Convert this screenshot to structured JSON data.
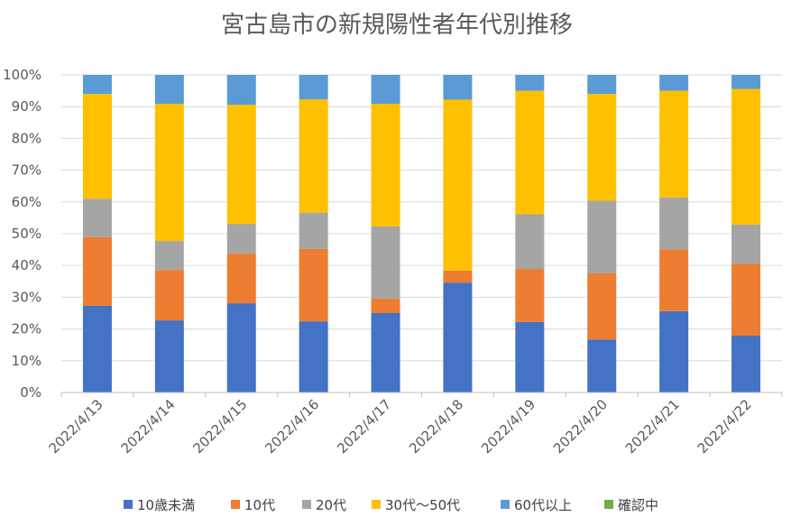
{
  "chart_data": {
    "type": "bar",
    "stacked": true,
    "percent": true,
    "title": "宮古島市の新規陽性者年代別推移",
    "categories": [
      "2022/4/13",
      "2022/4/14",
      "2022/4/15",
      "2022/4/16",
      "2022/4/17",
      "2022/4/18",
      "2022/4/19",
      "2022/4/20",
      "2022/4/21",
      "2022/4/22"
    ],
    "ylim": [
      0,
      100
    ],
    "yticks": [
      "0%",
      "10%",
      "20%",
      "30%",
      "40%",
      "50%",
      "60%",
      "70%",
      "80%",
      "90%",
      "100%"
    ],
    "grid": true,
    "legend_position": "bottom",
    "series": [
      {
        "name": "10歳未満",
        "color": "#4472C4",
        "values": [
          27.3,
          22.7,
          28.1,
          22.4,
          25.0,
          34.6,
          22.2,
          16.7,
          25.6,
          17.9
        ]
      },
      {
        "name": "10代",
        "color": "#ED7D31",
        "values": [
          21.6,
          15.9,
          15.6,
          22.8,
          4.6,
          3.8,
          16.7,
          20.8,
          19.5,
          22.6
        ]
      },
      {
        "name": "20代",
        "color": "#A5A5A5",
        "values": [
          12.1,
          9.1,
          9.4,
          11.4,
          22.7,
          0,
          17.2,
          22.9,
          16.3,
          12.4
        ]
      },
      {
        "name": "30代～50代",
        "color": "#FFC000",
        "values": [
          33.0,
          43.2,
          37.5,
          35.7,
          38.6,
          53.8,
          38.9,
          33.6,
          33.6,
          42.7
        ]
      },
      {
        "name": "60代以上",
        "color": "#5B9BD5",
        "values": [
          6.0,
          9.1,
          9.4,
          7.7,
          9.1,
          7.8,
          5.0,
          6.0,
          5.0,
          4.4
        ]
      },
      {
        "name": "確認中",
        "color": "#70AD47",
        "values": [
          0,
          0,
          0,
          0,
          0,
          0,
          0,
          0,
          0,
          0
        ]
      }
    ]
  }
}
